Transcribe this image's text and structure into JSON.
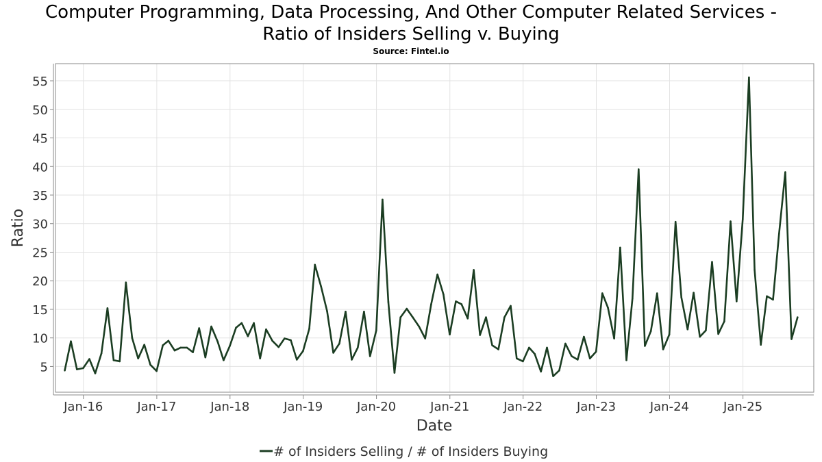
{
  "title_line1": "Computer Programming, Data Processing, And Other Computer Related Services -",
  "title_line2": "Ratio of Insiders Selling v. Buying",
  "source": "Source: Fintel.io",
  "colors": {
    "series": "#1b3d22",
    "grid": "#e2e2e2",
    "frame": "#888888"
  },
  "chart_data": {
    "type": "line",
    "title": "Computer Programming, Data Processing, And Other Computer Related Services - Ratio of Insiders Selling v. Buying",
    "xlabel": "Date",
    "ylabel": "Ratio",
    "ylim": [
      0.5,
      58
    ],
    "xlim": [
      "2015-08-15",
      "2025-12-20"
    ],
    "grid": true,
    "legend_position": "bottom",
    "y_ticks": [
      5,
      10,
      15,
      20,
      25,
      30,
      35,
      40,
      45,
      50,
      55
    ],
    "x_ticks": [
      {
        "label": "Jan-16",
        "date": "2016-01-01"
      },
      {
        "label": "Jan-17",
        "date": "2017-01-01"
      },
      {
        "label": "Jan-18",
        "date": "2018-01-01"
      },
      {
        "label": "Jan-19",
        "date": "2019-01-01"
      },
      {
        "label": "Jan-20",
        "date": "2020-01-01"
      },
      {
        "label": "Jan-21",
        "date": "2021-01-01"
      },
      {
        "label": "Jan-22",
        "date": "2022-01-01"
      },
      {
        "label": "Jan-23",
        "date": "2023-01-01"
      },
      {
        "label": "Jan-24",
        "date": "2024-01-01"
      },
      {
        "label": "Jan-25",
        "date": "2025-01-01"
      }
    ],
    "series": [
      {
        "name": "# of Insiders Selling / # of Insiders Buying",
        "color": "#1b3d22",
        "x": [
          "2015-09-30",
          "2015-10-31",
          "2015-11-30",
          "2015-12-31",
          "2016-01-31",
          "2016-02-29",
          "2016-03-31",
          "2016-04-30",
          "2016-05-31",
          "2016-06-30",
          "2016-07-31",
          "2016-08-31",
          "2016-09-30",
          "2016-10-31",
          "2016-11-30",
          "2016-12-31",
          "2017-01-31",
          "2017-02-28",
          "2017-03-31",
          "2017-04-30",
          "2017-05-31",
          "2017-06-30",
          "2017-07-31",
          "2017-08-31",
          "2017-09-30",
          "2017-10-31",
          "2017-11-30",
          "2017-12-31",
          "2018-01-31",
          "2018-02-28",
          "2018-03-31",
          "2018-04-30",
          "2018-05-31",
          "2018-06-30",
          "2018-07-31",
          "2018-08-31",
          "2018-09-30",
          "2018-10-31",
          "2018-11-30",
          "2018-12-31",
          "2019-01-31",
          "2019-02-28",
          "2019-03-31",
          "2019-04-30",
          "2019-05-31",
          "2019-06-30",
          "2019-07-31",
          "2019-08-31",
          "2019-09-30",
          "2019-10-31",
          "2019-11-30",
          "2019-12-31",
          "2020-01-31",
          "2020-02-29",
          "2020-03-31",
          "2020-04-30",
          "2020-05-31",
          "2020-06-30",
          "2020-07-31",
          "2020-08-31",
          "2020-09-30",
          "2020-10-31",
          "2020-11-30",
          "2020-12-31",
          "2021-01-31",
          "2021-02-28",
          "2021-03-31",
          "2021-04-30",
          "2021-05-31",
          "2021-06-30",
          "2021-07-31",
          "2021-08-31",
          "2021-09-30",
          "2021-10-31",
          "2021-11-30",
          "2021-12-31",
          "2022-01-31",
          "2022-02-28",
          "2022-03-31",
          "2022-04-30",
          "2022-05-31",
          "2022-06-30",
          "2022-07-31",
          "2022-08-31",
          "2022-09-30",
          "2022-10-31",
          "2022-11-30",
          "2022-12-31",
          "2023-01-31",
          "2023-02-28",
          "2023-03-31",
          "2023-04-30",
          "2023-05-31",
          "2023-06-30",
          "2023-07-31",
          "2023-08-31",
          "2023-09-30",
          "2023-10-31",
          "2023-11-30",
          "2023-12-31",
          "2024-01-31",
          "2024-02-29",
          "2024-03-31",
          "2024-04-30",
          "2024-05-31",
          "2024-06-30",
          "2024-07-31",
          "2024-08-31",
          "2024-09-30",
          "2024-10-31",
          "2024-11-30",
          "2024-12-31",
          "2025-01-31",
          "2025-02-28",
          "2025-03-31",
          "2025-04-30",
          "2025-05-31",
          "2025-06-30",
          "2025-07-31",
          "2025-08-31",
          "2025-09-30"
        ],
        "values": [
          4.3,
          9.4,
          4.5,
          4.7,
          6.3,
          3.8,
          7.3,
          15.2,
          6.1,
          5.9,
          19.7,
          10.0,
          6.4,
          8.8,
          5.3,
          4.2,
          8.7,
          9.5,
          7.8,
          8.3,
          8.3,
          7.5,
          11.7,
          6.6,
          12.0,
          9.4,
          6.1,
          8.6,
          11.8,
          12.6,
          10.3,
          12.6,
          6.4,
          11.5,
          9.5,
          8.4,
          9.9,
          9.6,
          6.2,
          7.7,
          11.6,
          22.8,
          19.0,
          14.7,
          7.4,
          9.0,
          14.6,
          6.2,
          8.3,
          14.6,
          6.8,
          11.3,
          34.2,
          16.3,
          3.9,
          13.6,
          15.1,
          13.6,
          12.0,
          9.9,
          15.9,
          21.1,
          17.6,
          10.6,
          16.4,
          15.9,
          13.4,
          21.9,
          10.5,
          13.6,
          8.7,
          8.0,
          13.6,
          15.6,
          6.4,
          5.9,
          8.3,
          7.2,
          4.1,
          8.3,
          3.3,
          4.3,
          9.0,
          6.8,
          6.2,
          10.2,
          6.4,
          7.6,
          17.8,
          15.3,
          9.9,
          25.8,
          6.1,
          16.9,
          39.5,
          8.6,
          11.2,
          17.8,
          8.0,
          10.6,
          30.3,
          17.1,
          11.5,
          17.9,
          10.2,
          11.3,
          23.3,
          10.7,
          12.9,
          30.4,
          16.4,
          30.8,
          55.6,
          21.9,
          8.8,
          17.3,
          16.7,
          28.2,
          39.0,
          9.8,
          13.6
        ]
      }
    ]
  }
}
